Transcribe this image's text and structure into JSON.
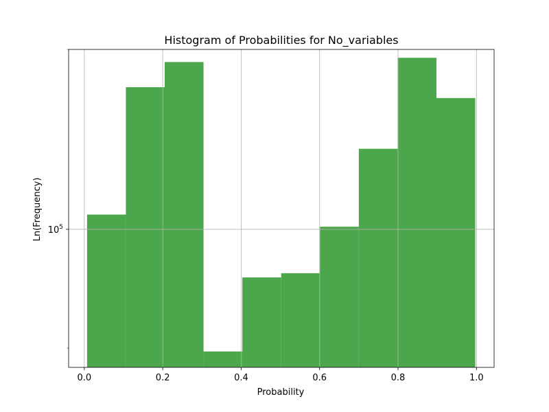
{
  "chart_data": {
    "type": "bar",
    "title": "Histogram of Probabilities for No_variables",
    "xlabel": "Probability",
    "ylabel": "Ln(Frequency)",
    "y_scale": "log",
    "xlim": [
      -0.04,
      1.045
    ],
    "ylim": [
      34500,
      400000
    ],
    "x_ticks": [
      0.0,
      0.2,
      0.4,
      0.6,
      0.8,
      1.0
    ],
    "x_tick_labels": [
      "0.0",
      "0.2",
      "0.4",
      "0.6",
      "0.8",
      "1.0"
    ],
    "y_major_ticks": [
      100000
    ],
    "y_tick_base": "10",
    "y_tick_exp": "5",
    "y_minor_ticks": [
      40000,
      400000
    ],
    "grid": true,
    "bar_color": "#4ca64c",
    "bins": [
      {
        "x0": 0.007,
        "x1": 0.106,
        "value": 112000
      },
      {
        "x0": 0.106,
        "x1": 0.205,
        "value": 299000
      },
      {
        "x0": 0.205,
        "x1": 0.304,
        "value": 363000
      },
      {
        "x0": 0.304,
        "x1": 0.403,
        "value": 39000
      },
      {
        "x0": 0.403,
        "x1": 0.502,
        "value": 69000
      },
      {
        "x0": 0.502,
        "x1": 0.601,
        "value": 71300
      },
      {
        "x0": 0.601,
        "x1": 0.7,
        "value": 102000
      },
      {
        "x0": 0.7,
        "x1": 0.799,
        "value": 186000
      },
      {
        "x0": 0.799,
        "x1": 0.898,
        "value": 375000
      },
      {
        "x0": 0.898,
        "x1": 0.997,
        "value": 275000
      }
    ]
  }
}
